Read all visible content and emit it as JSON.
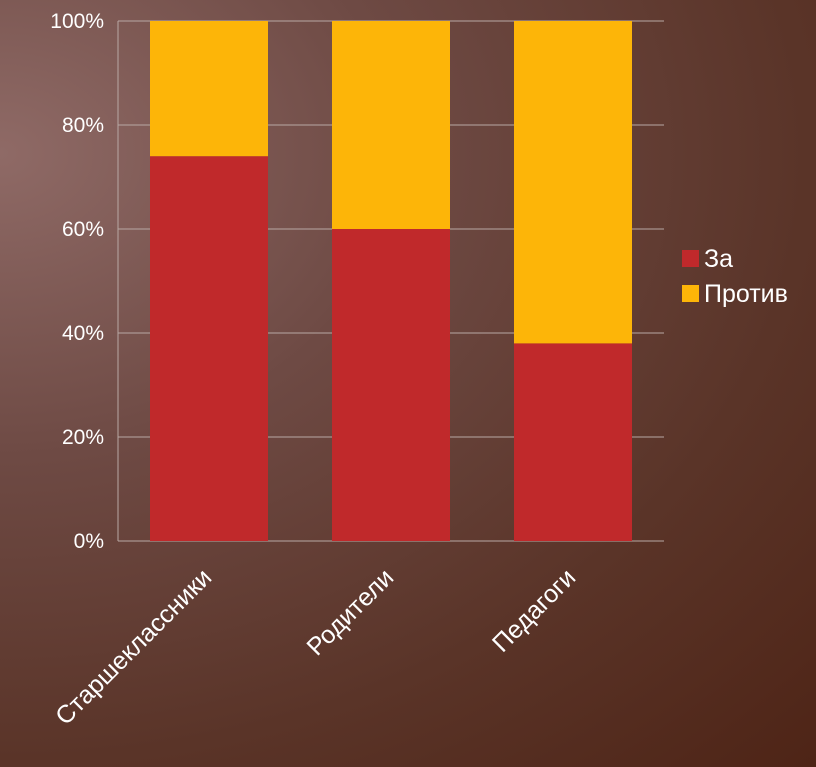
{
  "chart_data": {
    "type": "bar",
    "stacked": "percent",
    "categories": [
      "Старшеклассники",
      "Родители",
      "Педагоги"
    ],
    "series": [
      {
        "name": "За",
        "values": [
          74,
          60,
          38
        ],
        "color": "#c0292b"
      },
      {
        "name": "Против",
        "values": [
          26,
          40,
          62
        ],
        "color": "#fdb508"
      }
    ],
    "y_ticks": [
      "0%",
      "20%",
      "40%",
      "60%",
      "80%",
      "100%"
    ],
    "ylim": [
      0,
      100
    ],
    "grid": true,
    "legend_position": "right"
  }
}
